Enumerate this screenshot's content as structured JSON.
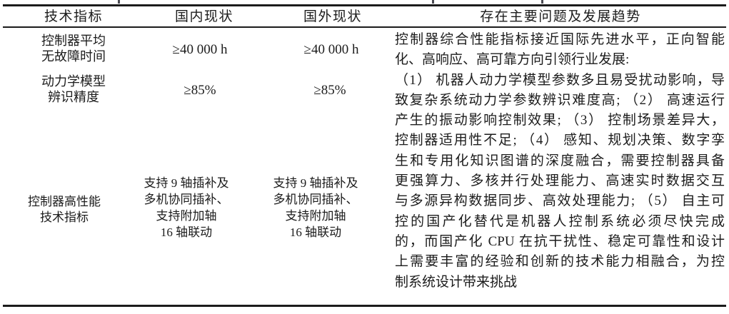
{
  "colors": {
    "background": "#ffffff",
    "text": "#1c1c1c",
    "rule": "#1b1b1b"
  },
  "table": {
    "columns": [
      "技术指标",
      "国内现状",
      "国外现状",
      "存在主要问题及发展趋势"
    ],
    "rows": [
      {
        "indicator_lines": [
          "控制器平均",
          "无故障时间"
        ],
        "domestic": "≥40 000 h",
        "overseas": "≥40 000 h"
      },
      {
        "indicator_lines": [
          "动力学模型",
          "辨识精度"
        ],
        "domestic": "≥85%",
        "overseas": "≥85%"
      },
      {
        "indicator_lines": [
          "控制器高性能",
          "技术指标"
        ],
        "domestic_lines": [
          "支持 9 轴插补及",
          "多机协同插补、",
          "支持附加轴",
          "16 轴联动"
        ],
        "overseas_lines": [
          "支持 9 轴插补及",
          "多机协同插补、",
          "支持附加轴",
          "16 轴联动"
        ]
      }
    ]
  },
  "problems": {
    "lines": [
      "控制器综合性能指标接近国际先进水平，正向智能",
      "化、高响应、高可靠方向引领行业发展:",
      "（1） 机器人动力学模型参数多且易受扰动影响，导",
      "致复杂系统动力学参数辨识难度高; （2） 高速运行",
      "产生的振动影响控制效果; （3） 控制场景差异大，",
      "控制器适用性不足; （4） 感知、规划决策、数字孪",
      "生和专用化知识图谱的深度融合，需要控制器具备",
      "更强算力、多核并行处理能力、高速实时数据交互",
      "与多源异构数据同步、高效处理能力; （5） 自主可",
      "控的国产化替代是机器人控制系统必须尽快完成",
      "的，而国产化 CPU 在抗干扰性、稳定可靠性和设计",
      "上需要丰富的经验和创新的技术能力相融合，为控",
      "制系统设计带来挑战"
    ]
  }
}
